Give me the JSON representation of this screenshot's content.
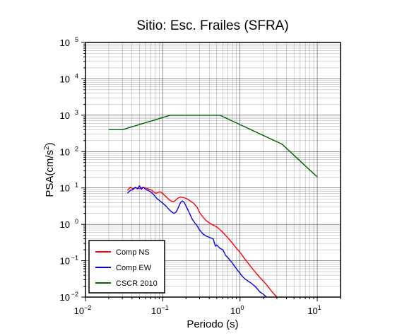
{
  "chart_data": {
    "type": "line",
    "title": "Sitio: Esc. Frailes (SFRA)",
    "xlabel": "Periodo (s)",
    "ylabel_base": "PSA(cm/s",
    "ylabel_sup": "2",
    "ylabel_end": ")",
    "xscale": "log",
    "yscale": "log",
    "xlim": [
      0.01,
      20
    ],
    "ylim": [
      0.01,
      100000
    ],
    "grid": true,
    "legend_position": "bottom-left",
    "x_ticks": [
      {
        "base": "10",
        "exp": "−2"
      },
      {
        "base": "10",
        "exp": "−1"
      },
      {
        "base": "10",
        "exp": "0"
      },
      {
        "base": "10",
        "exp": "1"
      }
    ],
    "y_ticks": [
      {
        "base": "10",
        "exp": "−2"
      },
      {
        "base": "10",
        "exp": "−1"
      },
      {
        "base": "10",
        "exp": "0"
      },
      {
        "base": "10",
        "exp": "1"
      },
      {
        "base": "10",
        "exp": "2"
      },
      {
        "base": "10",
        "exp": "3"
      },
      {
        "base": "10",
        "exp": "4"
      },
      {
        "base": "10",
        "exp": "5"
      }
    ],
    "series": [
      {
        "name": "Comp NS",
        "color": "#ff0000",
        "points": [
          [
            0.035,
            8.5
          ],
          [
            0.038,
            10.5
          ],
          [
            0.041,
            9.5
          ],
          [
            0.045,
            10.2
          ],
          [
            0.05,
            9.6
          ],
          [
            0.055,
            10.5
          ],
          [
            0.06,
            10.0
          ],
          [
            0.065,
            9.5
          ],
          [
            0.07,
            9.0
          ],
          [
            0.075,
            8.0
          ],
          [
            0.08,
            7.2
          ],
          [
            0.085,
            7.3
          ],
          [
            0.09,
            7.8
          ],
          [
            0.095,
            7.6
          ],
          [
            0.1,
            7.0
          ],
          [
            0.11,
            5.8
          ],
          [
            0.12,
            4.8
          ],
          [
            0.13,
            4.3
          ],
          [
            0.14,
            4.2
          ],
          [
            0.15,
            4.8
          ],
          [
            0.16,
            5.4
          ],
          [
            0.17,
            5.6
          ],
          [
            0.18,
            5.5
          ],
          [
            0.2,
            5.2
          ],
          [
            0.22,
            4.6
          ],
          [
            0.25,
            3.8
          ],
          [
            0.28,
            2.9
          ],
          [
            0.3,
            2.1
          ],
          [
            0.33,
            1.6
          ],
          [
            0.36,
            1.3
          ],
          [
            0.4,
            1.1
          ],
          [
            0.45,
            0.95
          ],
          [
            0.5,
            0.85
          ],
          [
            0.55,
            0.72
          ],
          [
            0.6,
            0.6
          ],
          [
            0.7,
            0.42
          ],
          [
            0.8,
            0.3
          ],
          [
            0.9,
            0.22
          ],
          [
            1.0,
            0.17
          ],
          [
            1.2,
            0.1
          ],
          [
            1.5,
            0.055
          ],
          [
            1.8,
            0.035
          ],
          [
            2.2,
            0.022
          ],
          [
            2.6,
            0.014
          ],
          [
            3.0,
            0.01
          ]
        ]
      },
      {
        "name": "Comp EW",
        "color": "#0000ff",
        "points": [
          [
            0.035,
            7.2
          ],
          [
            0.038,
            8.5
          ],
          [
            0.041,
            9.0
          ],
          [
            0.044,
            10.5
          ],
          [
            0.047,
            9.5
          ],
          [
            0.05,
            11.5
          ],
          [
            0.053,
            9.2
          ],
          [
            0.056,
            10.5
          ],
          [
            0.06,
            9.2
          ],
          [
            0.065,
            8.5
          ],
          [
            0.07,
            7.8
          ],
          [
            0.075,
            6.8
          ],
          [
            0.08,
            5.8
          ],
          [
            0.085,
            5.0
          ],
          [
            0.09,
            4.6
          ],
          [
            0.1,
            3.8
          ],
          [
            0.11,
            3.2
          ],
          [
            0.12,
            2.6
          ],
          [
            0.13,
            2.2
          ],
          [
            0.14,
            2.0
          ],
          [
            0.15,
            2.2
          ],
          [
            0.16,
            3.0
          ],
          [
            0.17,
            4.0
          ],
          [
            0.18,
            4.4
          ],
          [
            0.19,
            4.0
          ],
          [
            0.2,
            3.2
          ],
          [
            0.22,
            2.1
          ],
          [
            0.24,
            1.4
          ],
          [
            0.26,
            1.1
          ],
          [
            0.28,
            0.9
          ],
          [
            0.3,
            0.7
          ],
          [
            0.33,
            0.55
          ],
          [
            0.36,
            0.48
          ],
          [
            0.4,
            0.44
          ],
          [
            0.45,
            0.4
          ],
          [
            0.48,
            0.25
          ],
          [
            0.5,
            0.27
          ],
          [
            0.55,
            0.22
          ],
          [
            0.6,
            0.2
          ],
          [
            0.65,
            0.14
          ],
          [
            0.7,
            0.12
          ],
          [
            0.8,
            0.085
          ],
          [
            0.9,
            0.06
          ],
          [
            1.0,
            0.045
          ],
          [
            1.1,
            0.035
          ],
          [
            1.2,
            0.03
          ],
          [
            1.4,
            0.024
          ],
          [
            1.6,
            0.019
          ],
          [
            1.8,
            0.014
          ],
          [
            2.0,
            0.012
          ],
          [
            2.2,
            0.01
          ]
        ]
      },
      {
        "name": "CSCR 2010",
        "color": "#006400",
        "points": [
          [
            0.02,
            400
          ],
          [
            0.03,
            400
          ],
          [
            0.125,
            1000
          ],
          [
            0.55,
            1000
          ],
          [
            3.5,
            160
          ],
          [
            10,
            20
          ]
        ]
      }
    ]
  }
}
